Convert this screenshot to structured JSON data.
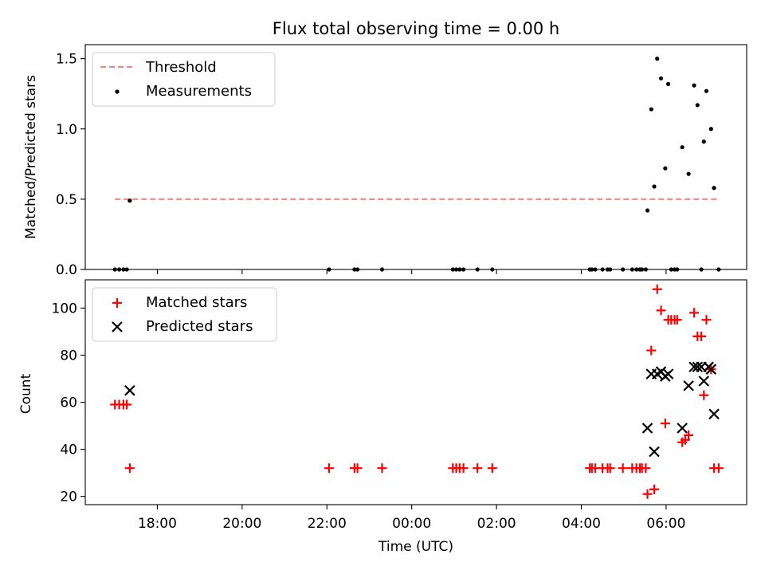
{
  "title": "Flux total observing time = 0.00 h",
  "x_axis": {
    "label": "Time (UTC)",
    "ticks": [
      {
        "label": "18:00",
        "hours": 18
      },
      {
        "label": "20:00",
        "hours": 20
      },
      {
        "label": "22:00",
        "hours": 22
      },
      {
        "label": "00:00",
        "hours": 24
      },
      {
        "label": "02:00",
        "hours": 26
      },
      {
        "label": "04:00",
        "hours": 28
      },
      {
        "label": "06:00",
        "hours": 30
      }
    ],
    "range_hours": [
      16.3,
      31.9
    ]
  },
  "colors": {
    "threshold": "#ff7f7f",
    "matched": "#ff0000",
    "predicted": "#000000",
    "measurement": "#000000"
  },
  "chart_data": [
    {
      "type": "scatter",
      "ylabel": "Matched/Predicted stars",
      "ylim": [
        0,
        1.6
      ],
      "yticks": [
        "0.0",
        "0.5",
        "1.0",
        "1.5"
      ],
      "legend": {
        "position": "top-left",
        "entries": [
          "Threshold",
          "Measurements"
        ]
      },
      "threshold": {
        "name": "Threshold",
        "y": 0.5,
        "x_range": [
          17.0,
          31.2
        ]
      },
      "series": [
        {
          "name": "Measurements",
          "marker": "dot",
          "points": [
            [
              17.0,
              0
            ],
            [
              17.1,
              0
            ],
            [
              17.2,
              0
            ],
            [
              17.28,
              0
            ],
            [
              17.35,
              0.49
            ],
            [
              22.05,
              0
            ],
            [
              22.65,
              0
            ],
            [
              22.72,
              0
            ],
            [
              23.3,
              0
            ],
            [
              24.97,
              0
            ],
            [
              25.05,
              0
            ],
            [
              25.13,
              0
            ],
            [
              25.22,
              0
            ],
            [
              25.55,
              0
            ],
            [
              25.9,
              0
            ],
            [
              28.2,
              0
            ],
            [
              28.25,
              0
            ],
            [
              28.33,
              0
            ],
            [
              28.5,
              0
            ],
            [
              28.62,
              0
            ],
            [
              28.68,
              0
            ],
            [
              28.98,
              0
            ],
            [
              29.2,
              0
            ],
            [
              29.3,
              0
            ],
            [
              29.38,
              0
            ],
            [
              29.43,
              0
            ],
            [
              29.52,
              0
            ],
            [
              29.56,
              0.42
            ],
            [
              29.65,
              1.14
            ],
            [
              29.72,
              0.59
            ],
            [
              29.79,
              1.5
            ],
            [
              29.88,
              1.36
            ],
            [
              29.98,
              0.72
            ],
            [
              30.05,
              1.32
            ],
            [
              30.12,
              0
            ],
            [
              30.2,
              0
            ],
            [
              30.26,
              0
            ],
            [
              30.38,
              0.87
            ],
            [
              30.53,
              0.68
            ],
            [
              30.66,
              1.31
            ],
            [
              30.74,
              1.17
            ],
            [
              30.83,
              0
            ],
            [
              30.89,
              0.91
            ],
            [
              30.95,
              1.27
            ],
            [
              31.06,
              1.0
            ],
            [
              31.13,
              0.58
            ],
            [
              31.24,
              0
            ]
          ]
        }
      ]
    },
    {
      "type": "scatter",
      "ylabel": "Count",
      "ylim": [
        16.5,
        112
      ],
      "yticks": [
        "20",
        "40",
        "60",
        "80",
        "100"
      ],
      "legend": {
        "position": "top-left",
        "entries": [
          "Matched stars",
          "Predicted stars"
        ]
      },
      "series": [
        {
          "name": "Matched stars",
          "marker": "plus",
          "points": [
            [
              17.0,
              59
            ],
            [
              17.1,
              59
            ],
            [
              17.2,
              59
            ],
            [
              17.28,
              59
            ],
            [
              17.35,
              32
            ],
            [
              22.05,
              32
            ],
            [
              22.65,
              32
            ],
            [
              22.72,
              32
            ],
            [
              23.3,
              32
            ],
            [
              24.97,
              32
            ],
            [
              25.05,
              32
            ],
            [
              25.13,
              32
            ],
            [
              25.22,
              32
            ],
            [
              25.55,
              32
            ],
            [
              25.9,
              32
            ],
            [
              28.2,
              32
            ],
            [
              28.25,
              32
            ],
            [
              28.33,
              32
            ],
            [
              28.5,
              32
            ],
            [
              28.62,
              32
            ],
            [
              28.68,
              32
            ],
            [
              28.98,
              32
            ],
            [
              29.2,
              32
            ],
            [
              29.3,
              32
            ],
            [
              29.38,
              32
            ],
            [
              29.43,
              32
            ],
            [
              29.52,
              32
            ],
            [
              29.56,
              21
            ],
            [
              29.65,
              82
            ],
            [
              29.72,
              23
            ],
            [
              29.79,
              108
            ],
            [
              29.88,
              99
            ],
            [
              29.98,
              51
            ],
            [
              30.05,
              95
            ],
            [
              30.12,
              95
            ],
            [
              30.2,
              95
            ],
            [
              30.26,
              95
            ],
            [
              30.38,
              43
            ],
            [
              30.45,
              44
            ],
            [
              30.53,
              46
            ],
            [
              30.66,
              98
            ],
            [
              30.74,
              88
            ],
            [
              30.83,
              88
            ],
            [
              30.89,
              63
            ],
            [
              30.95,
              95
            ],
            [
              31.06,
              74
            ],
            [
              31.13,
              32
            ],
            [
              31.24,
              32
            ]
          ]
        },
        {
          "name": "Predicted stars",
          "marker": "x",
          "points": [
            [
              17.35,
              65
            ],
            [
              29.56,
              49
            ],
            [
              29.65,
              72
            ],
            [
              29.72,
              39
            ],
            [
              29.79,
              72
            ],
            [
              29.88,
              73
            ],
            [
              29.98,
              71
            ],
            [
              30.05,
              72
            ],
            [
              30.38,
              49
            ],
            [
              30.53,
              67
            ],
            [
              30.66,
              75
            ],
            [
              30.74,
              75
            ],
            [
              30.83,
              75
            ],
            [
              30.89,
              69
            ],
            [
              31.0,
              75
            ],
            [
              31.06,
              74
            ],
            [
              31.13,
              55
            ]
          ]
        }
      ]
    }
  ]
}
